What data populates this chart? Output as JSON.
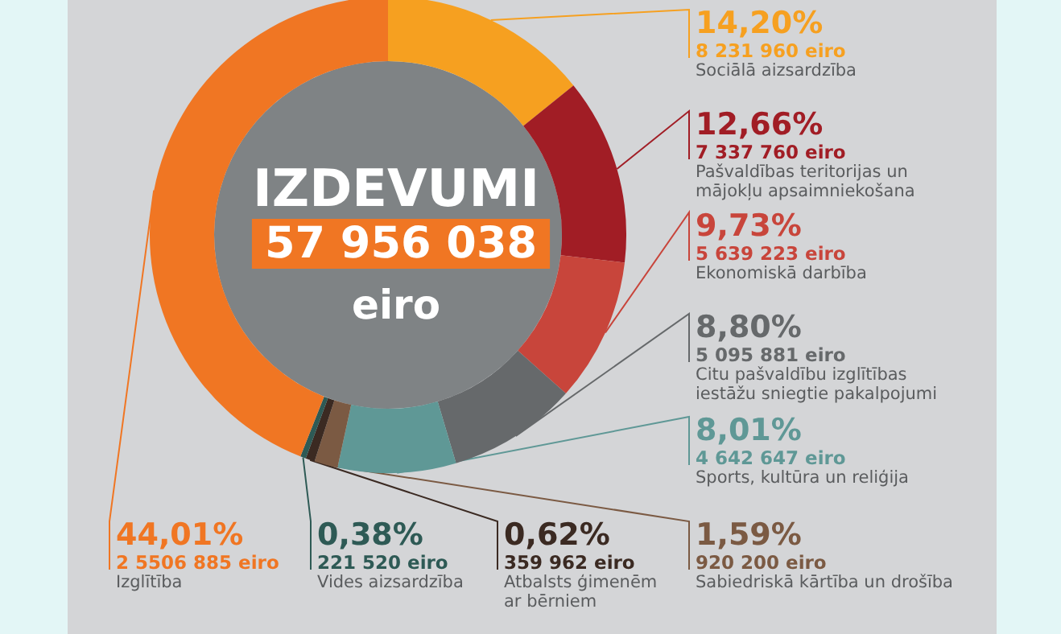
{
  "chart_data": {
    "type": "donut",
    "title": "IZDEVUMI",
    "annotations": [
      "57 956 038",
      "eiro"
    ],
    "categories": [
      "Sociālā aizsardzība",
      "Pašvaldības teritorijas un mājokļu apsaimniekošana",
      "Ekonomiskā darbība",
      "Citu pašvaldību izglītības iestāžu sniegtie pakalpojumi",
      "Sports, kultūra un reliģija",
      "Sabiedriskā kārtība un drošība",
      "Atbalsts ģimenēm ar bērniem",
      "Vides aizsardzība",
      "Izglītība"
    ],
    "values": [
      14.2,
      12.66,
      9.73,
      8.8,
      8.01,
      1.59,
      0.62,
      0.38,
      44.01
    ],
    "value_labels": [
      "14,20%\n8 231 960 eiro",
      "12,66%\n7 337 760 eiro",
      "9,73%\n5 639 223 eiro",
      "8,80%\n5 095 881 eiro",
      "8,01%\n4 642 647 eiro",
      "1,59%\n920 200 eiro",
      "0,62%\n359 962 eiro",
      "0,38%\n221 520 eiro",
      "44,01%\n2 5506 885 eiro"
    ],
    "colors": [
      "#f6a020",
      "#a11d25",
      "#c8453b",
      "#66696b",
      "#5f9896",
      "#7b5a43",
      "#3b2a22",
      "#2e5a55",
      "#f07623"
    ],
    "legend": false
  }
}
